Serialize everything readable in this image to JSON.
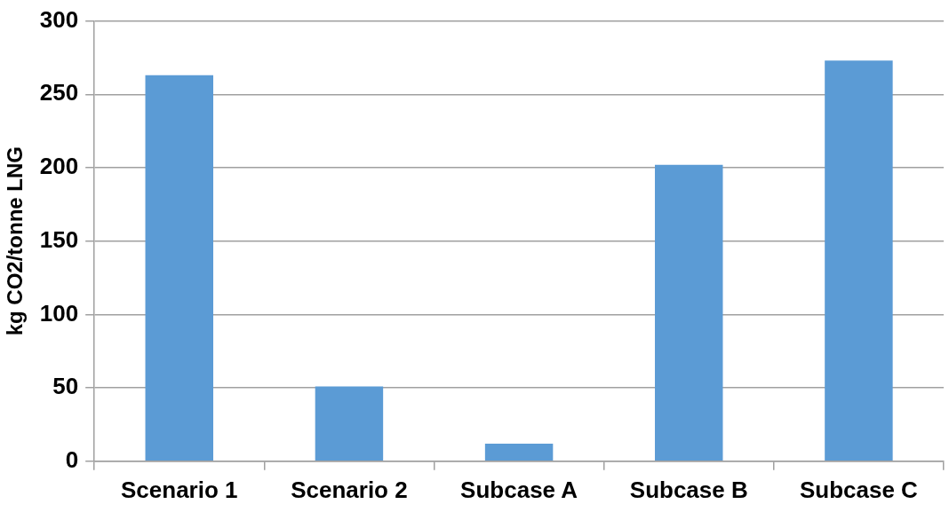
{
  "chart_data": {
    "type": "bar",
    "ylabel": "kg CO2/tonne LNG",
    "categories": [
      "Scenario 1",
      "Scenario 2",
      "Subcase A",
      "Subcase B",
      "Subcase C"
    ],
    "values": [
      263,
      51,
      12,
      202,
      273
    ],
    "color": "#5b9bd5",
    "ylim": [
      0,
      300
    ],
    "yticks": [
      0,
      50,
      100,
      150,
      200,
      250,
      300
    ],
    "grid": "y",
    "legend": false
  }
}
